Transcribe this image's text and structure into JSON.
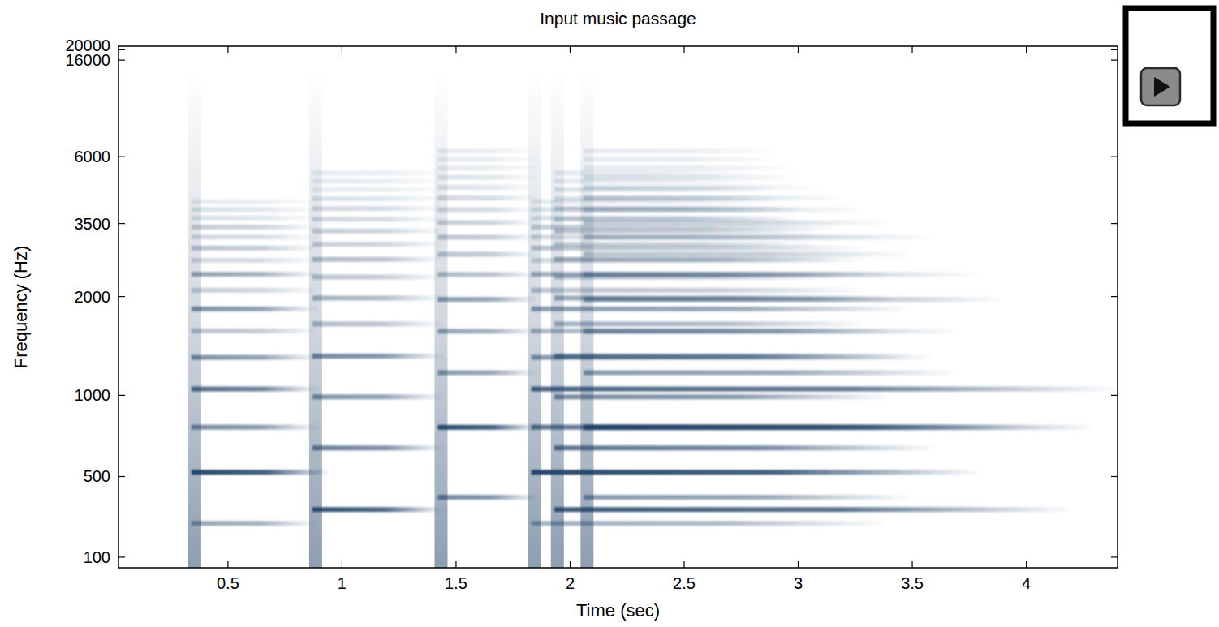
{
  "chart_data": {
    "type": "spectrogram",
    "title": "Input music passage",
    "x_label": "Time (sec)",
    "y_label": "Frequency (Hz)",
    "xlim": [
      0.02,
      4.4
    ],
    "ylim": [
      50,
      22050
    ],
    "xticks": [
      0.5,
      1,
      1.5,
      2,
      2.5,
      3,
      3.5,
      4
    ],
    "yticks": [
      100,
      500,
      1000,
      2000,
      3500,
      6000,
      16000,
      20000
    ],
    "color": "#1b3d63",
    "notes": [
      {
        "onset": 0.34,
        "freqs": [
          262,
          523,
          785,
          1047,
          1308,
          1570,
          1831,
          2093,
          2355,
          2616,
          2878,
          3140,
          3401,
          3663,
          3924,
          4186
        ],
        "levels": [
          0.45,
          0.95,
          0.6,
          0.75,
          0.55,
          0.3,
          0.55,
          0.25,
          0.45,
          0.2,
          0.3,
          0.2,
          0.25,
          0.15,
          0.15,
          0.1
        ],
        "ends": [
          0.9,
          0.95,
          0.9,
          0.9,
          0.9,
          0.9,
          0.9,
          0.9,
          0.9,
          0.9,
          0.9,
          0.9,
          0.9,
          0.9,
          0.9,
          0.9
        ]
      },
      {
        "onset": 0.87,
        "freqs": [
          330,
          659,
          989,
          1319,
          1648,
          1978,
          2307,
          2637,
          2967,
          3296,
          3626,
          3956,
          4285,
          4615,
          4944,
          5274
        ],
        "levels": [
          0.9,
          0.65,
          0.55,
          0.6,
          0.35,
          0.4,
          0.3,
          0.35,
          0.25,
          0.25,
          0.2,
          0.2,
          0.15,
          0.1,
          0.1,
          0.1
        ],
        "ends": [
          1.45,
          1.45,
          1.45,
          1.45,
          1.45,
          1.45,
          1.45,
          1.45,
          1.45,
          1.45,
          1.45,
          1.45,
          1.45,
          1.45,
          1.45,
          1.45
        ]
      },
      {
        "onset": 1.42,
        "freqs": [
          392,
          784,
          1175,
          1567,
          1959,
          2351,
          2743,
          3135,
          3526,
          3918,
          4310,
          4702,
          5094,
          5486,
          5878,
          6270
        ],
        "levels": [
          0.6,
          0.95,
          0.5,
          0.45,
          0.5,
          0.35,
          0.3,
          0.3,
          0.25,
          0.2,
          0.2,
          0.15,
          0.15,
          0.1,
          0.1,
          0.1
        ],
        "ends": [
          1.86,
          1.86,
          1.86,
          1.86,
          1.86,
          1.86,
          1.86,
          1.86,
          1.86,
          1.86,
          1.86,
          1.86,
          1.86,
          1.86,
          1.86,
          1.86
        ]
      },
      {
        "onset": 1.83,
        "freqs": [
          262,
          523,
          785,
          1047,
          1308,
          1570,
          1831,
          2093,
          2355,
          2616,
          2878,
          3140,
          3401,
          3663,
          3924,
          4186
        ],
        "levels": [
          0.4,
          0.95,
          0.7,
          0.8,
          0.5,
          0.35,
          0.5,
          0.3,
          0.4,
          0.2,
          0.3,
          0.2,
          0.25,
          0.15,
          0.15,
          0.1
        ],
        "ends": [
          3.4,
          3.8,
          4.0,
          4.4,
          3.6,
          3.4,
          3.5,
          3.3,
          3.4,
          3.2,
          3.3,
          3.1,
          3.2,
          3.0,
          3.0,
          2.9
        ]
      },
      {
        "onset": 1.93,
        "freqs": [
          330,
          659,
          989,
          1319,
          1648,
          1978,
          2307,
          2637,
          2967,
          3296,
          3626,
          3956,
          4285,
          4615,
          4944,
          5274
        ],
        "levels": [
          0.85,
          0.7,
          0.6,
          0.55,
          0.4,
          0.45,
          0.3,
          0.35,
          0.25,
          0.3,
          0.2,
          0.2,
          0.15,
          0.15,
          0.1,
          0.1
        ],
        "ends": [
          4.2,
          3.6,
          3.4,
          3.5,
          3.3,
          3.4,
          3.2,
          3.3,
          3.1,
          3.1,
          3.0,
          3.0,
          2.9,
          2.9,
          2.8,
          2.8
        ]
      },
      {
        "onset": 2.06,
        "freqs": [
          392,
          784,
          1175,
          1567,
          1959,
          2351,
          2743,
          3135,
          3526,
          3918,
          4310,
          4702,
          5094,
          5486,
          5878,
          6270
        ],
        "levels": [
          0.5,
          0.9,
          0.5,
          0.45,
          0.5,
          0.35,
          0.3,
          0.3,
          0.25,
          0.2,
          0.2,
          0.15,
          0.15,
          0.1,
          0.1,
          0.1
        ],
        "ends": [
          3.5,
          4.3,
          3.7,
          3.7,
          3.9,
          3.8,
          3.5,
          3.6,
          3.4,
          3.3,
          3.2,
          3.1,
          3.0,
          3.0,
          2.9,
          2.9
        ]
      }
    ]
  }
}
